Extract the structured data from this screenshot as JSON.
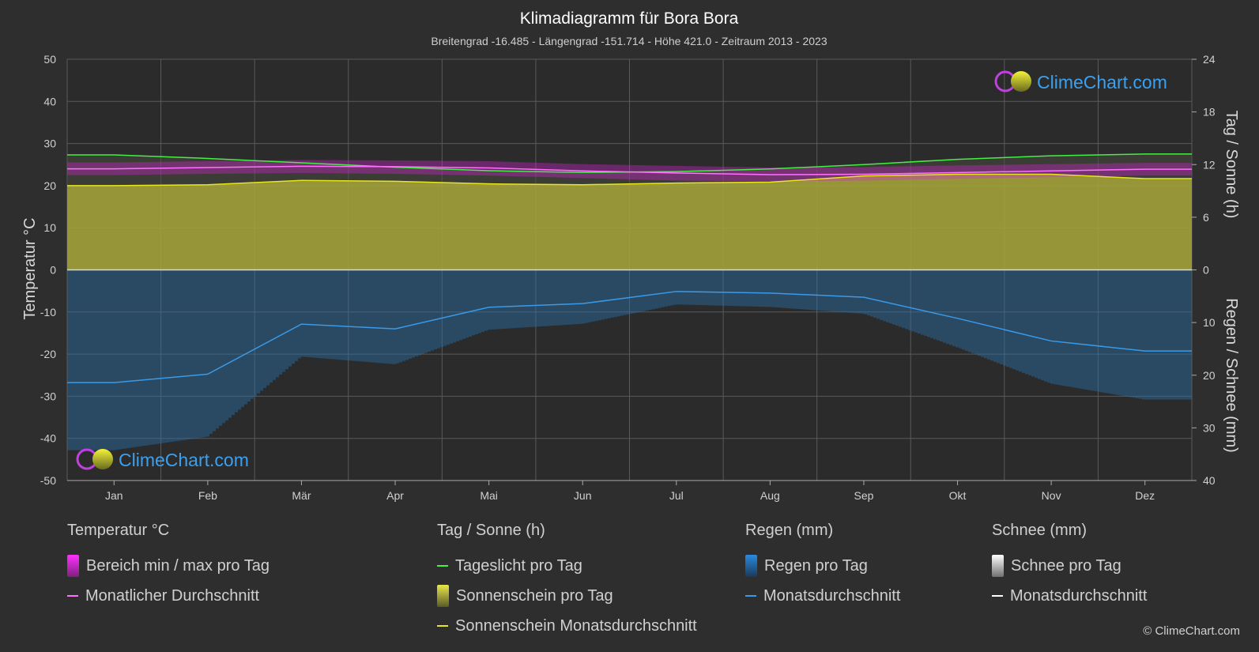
{
  "title": "Klimadiagramm für Bora Bora",
  "subtitle": "Breitengrad -16.485 - Längengrad -151.714 - Höhe 421.0 - Zeitraum 2013 - 2023",
  "watermark": "ClimeChart.com",
  "copyright": "© ClimeChart.com",
  "colors": {
    "background": "#2e2e2e",
    "grid": "#5a5a5a",
    "temp_range": "#e020e0",
    "temp_avg": "#ff70ff",
    "daylight": "#44ee44",
    "sunshine_fill": "#b4b43a",
    "sunshine_avg": "#e6e620",
    "rain_fill": "#2a6fa8",
    "rain_avg": "#3a9ae8",
    "snow_avg": "#ffffff",
    "logo_text": "#3aa0f0"
  },
  "legend": {
    "temperature": {
      "title": "Temperatur °C",
      "range": "Bereich min / max pro Tag",
      "avg": "Monatlicher Durchschnitt"
    },
    "sun": {
      "title": "Tag / Sonne (h)",
      "daylight": "Tageslicht pro Tag",
      "sunshine": "Sonnenschein pro Tag",
      "sunshine_avg": "Sonnenschein Monatsdurchschnitt"
    },
    "rain": {
      "title": "Regen (mm)",
      "per_day": "Regen pro Tag",
      "avg": "Monatsdurchschnitt"
    },
    "snow": {
      "title": "Schnee (mm)",
      "per_day": "Schnee pro Tag",
      "avg": "Monatsdurchschnitt"
    }
  },
  "chart_data": {
    "type": "line",
    "categories": [
      "Jan",
      "Feb",
      "Mär",
      "Apr",
      "Mai",
      "Jun",
      "Jul",
      "Aug",
      "Sep",
      "Okt",
      "Nov",
      "Dez"
    ],
    "left_axis": {
      "label": "Temperatur °C",
      "range": [
        -50,
        50
      ],
      "ticks": [
        50,
        40,
        30,
        20,
        10,
        0,
        -10,
        -20,
        -30,
        -40,
        -50
      ]
    },
    "right_axis_top": {
      "label": "Tag / Sonne (h)",
      "range": [
        0,
        24
      ],
      "ticks": [
        24,
        18,
        12,
        6,
        0
      ]
    },
    "right_axis_bottom": {
      "label": "Regen / Schnee (mm)",
      "range": [
        0,
        40
      ],
      "ticks": [
        0,
        10,
        20,
        30,
        40
      ]
    },
    "grid": true,
    "series": [
      {
        "name": "Tageslicht pro Tag",
        "axis": "hours",
        "values": [
          13.1,
          12.7,
          12.2,
          11.7,
          11.3,
          11.1,
          11.2,
          11.5,
          12.0,
          12.6,
          13.0,
          13.2
        ]
      },
      {
        "name": "Sonnenschein Monatsdurchschnitt",
        "axis": "hours",
        "values": [
          9.6,
          9.7,
          10.2,
          10.1,
          9.8,
          9.7,
          9.9,
          10.0,
          10.7,
          10.9,
          10.9,
          10.4
        ]
      },
      {
        "name": "Monatlicher Durchschnitt",
        "axis": "temp",
        "values": [
          24.0,
          24.3,
          24.6,
          24.5,
          24.2,
          23.5,
          23.0,
          22.6,
          22.7,
          23.1,
          23.5,
          23.9
        ]
      },
      {
        "name": "Bereich min / max pro Tag",
        "axis": "temp",
        "min": [
          22.5,
          22.8,
          23.0,
          22.8,
          22.4,
          21.8,
          21.2,
          21.0,
          21.2,
          21.6,
          22.0,
          22.4
        ],
        "max": [
          25.5,
          25.8,
          26.1,
          26.0,
          25.8,
          25.1,
          24.7,
          24.3,
          24.4,
          24.8,
          25.1,
          25.4
        ]
      },
      {
        "name": "Monatsdurchschnitt (Regen)",
        "axis": "rain",
        "values": [
          21.4,
          19.8,
          10.3,
          11.2,
          7.1,
          6.4,
          4.1,
          4.4,
          5.2,
          9.2,
          13.5,
          15.4
        ]
      },
      {
        "name": "Monatsdurchschnitt (Schnee)",
        "axis": "rain",
        "values": [
          0,
          0,
          0,
          0,
          0,
          0,
          0,
          0,
          0,
          0,
          0,
          0
        ]
      }
    ]
  }
}
